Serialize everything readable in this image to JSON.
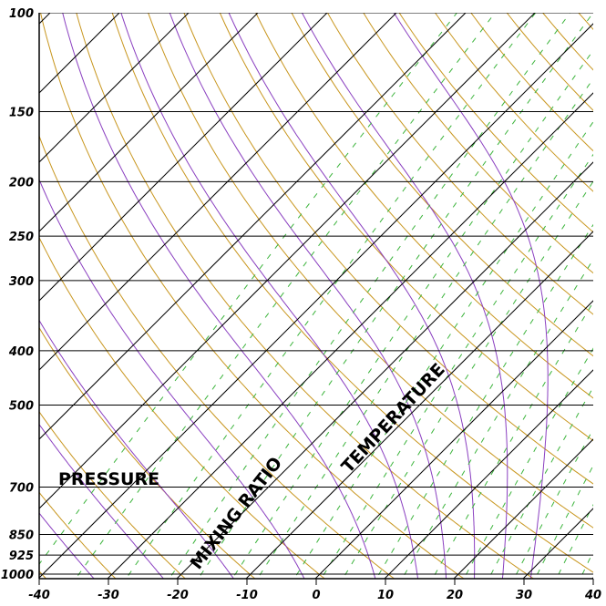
{
  "chart_data": {
    "type": "line",
    "pressure_ticks": [
      "100",
      "150",
      "200",
      "250",
      "300",
      "400",
      "500",
      "700",
      "850",
      "925",
      "1000"
    ],
    "pressure_values": [
      100,
      150,
      200,
      250,
      300,
      400,
      500,
      700,
      850,
      925,
      1000
    ],
    "temperature_ticks": [
      "-40",
      "-30",
      "-20",
      "-10",
      "0",
      "10",
      "20",
      "30",
      "40"
    ],
    "temperature_values": [
      -40,
      -30,
      -20,
      -10,
      0,
      10,
      20,
      30,
      40
    ],
    "xlim": [
      -40,
      40
    ],
    "ylim": [
      1000,
      100
    ],
    "y_scale": "log",
    "annotations": {
      "pressure": "PRESSURE",
      "mixing_ratio": "MIXING RATIO",
      "temperature": "TEMPERATURE"
    },
    "colors": {
      "isobars": "#000000",
      "isotherms": "#000000",
      "dry_adiabats": "#c8961e",
      "moist_adiabats": "#8a3fc0",
      "mixing_ratio": "#3cb43c"
    }
  }
}
